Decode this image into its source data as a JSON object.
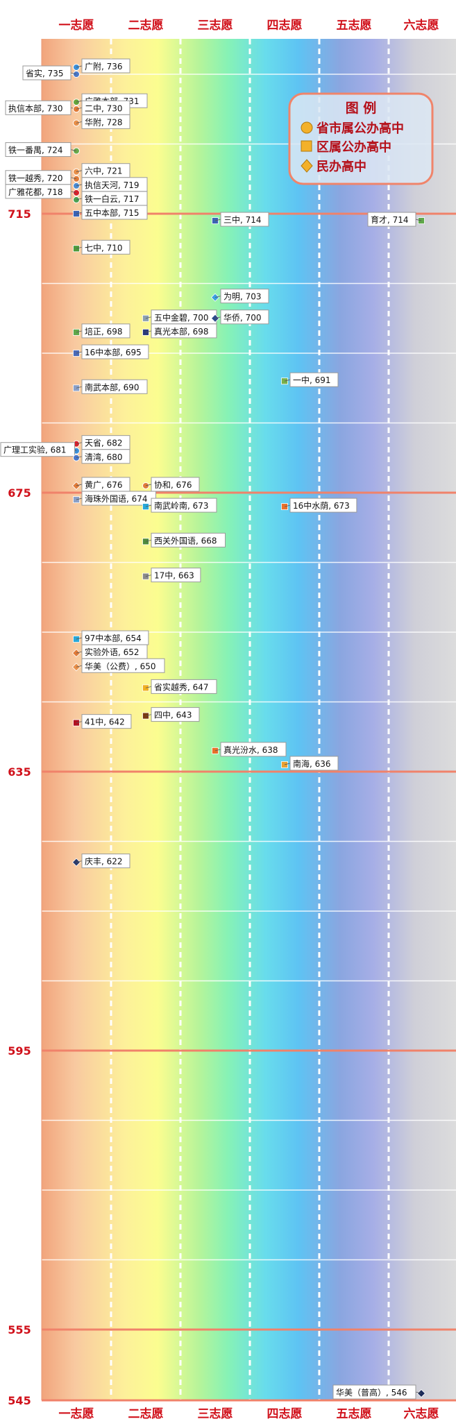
{
  "chart_data": {
    "type": "scatter",
    "title": "",
    "xlabel": "",
    "ylabel": "",
    "categories": [
      "一志愿",
      "二志愿",
      "三志愿",
      "四志愿",
      "五志愿",
      "六志愿"
    ],
    "y_ticks": [
      715,
      675,
      635,
      595,
      555,
      545
    ],
    "ylim": [
      545,
      741
    ],
    "grid": true,
    "legend": {
      "title": "图 例",
      "position": "top-right",
      "items": [
        {
          "label": "省市属公办高中",
          "shape": "circle",
          "color": "#f3b12a"
        },
        {
          "label": "区属公办高中",
          "shape": "square",
          "color": "#f3b12a"
        },
        {
          "label": "民办高中",
          "shape": "diamond",
          "color": "#f3b12a"
        }
      ]
    },
    "points": [
      {
        "name": "广附",
        "label": "广附, 736",
        "choice": 1,
        "score": 736,
        "shape": "circle",
        "color": "#3a8fd8",
        "side": "right"
      },
      {
        "name": "省实",
        "label": "省实, 735",
        "choice": 1,
        "score": 735,
        "shape": "circle",
        "color": "#4a77c9",
        "side": "left"
      },
      {
        "name": "广雅本部",
        "label": "广雅本部, 731",
        "choice": 1,
        "score": 731,
        "shape": "circle",
        "color": "#63a53c",
        "side": "right"
      },
      {
        "name": "执信本部",
        "label": "执信本部, 730",
        "choice": 1,
        "score": 730,
        "shape": "circle",
        "color": "#5aa040",
        "side": "left"
      },
      {
        "name": "二中",
        "label": "二中, 730",
        "choice": 1,
        "score": 730,
        "shape": "circle",
        "color": "#e07b39",
        "side": "right"
      },
      {
        "name": "华附",
        "label": "华附, 728",
        "choice": 1,
        "score": 728,
        "shape": "circle",
        "color": "#e8904a",
        "side": "right"
      },
      {
        "name": "铁一番禺",
        "label": "铁一番禺, 724",
        "choice": 1,
        "score": 724,
        "shape": "circle",
        "color": "#6aab4a",
        "side": "left"
      },
      {
        "name": "六中",
        "label": "六中, 721",
        "choice": 1,
        "score": 721,
        "shape": "circle",
        "color": "#e8904a",
        "side": "right"
      },
      {
        "name": "铁一越秀",
        "label": "铁一越秀, 720",
        "choice": 1,
        "score": 720,
        "shape": "circle",
        "color": "#e07b39",
        "side": "left"
      },
      {
        "name": "执信天河",
        "label": "执信天河, 719",
        "choice": 1,
        "score": 719,
        "shape": "circle",
        "color": "#4a8ad0",
        "side": "right"
      },
      {
        "name": "广雅花都",
        "label": "广雅花都, 718",
        "choice": 1,
        "score": 718,
        "shape": "circle",
        "color": "#d8202a",
        "side": "left"
      },
      {
        "name": "铁一白云",
        "label": "铁一白云, 717",
        "choice": 1,
        "score": 717,
        "shape": "circle",
        "color": "#4aa050",
        "side": "right"
      },
      {
        "name": "五中本部",
        "label": "五中本部, 715",
        "choice": 1,
        "score": 715,
        "shape": "square",
        "color": "#3b63b5",
        "side": "right"
      },
      {
        "name": "三中",
        "label": "三中, 714",
        "choice": 3,
        "score": 714,
        "shape": "square",
        "color": "#3b63b5",
        "side": "right"
      },
      {
        "name": "育才",
        "label": "育才, 714",
        "choice": 6,
        "score": 714,
        "shape": "square",
        "color": "#5fa84a",
        "side": "left"
      },
      {
        "name": "七中",
        "label": "七中, 710",
        "choice": 1,
        "score": 710,
        "shape": "square",
        "color": "#4e9a3c",
        "side": "right"
      },
      {
        "name": "为明",
        "label": "为明, 703",
        "choice": 3,
        "score": 703,
        "shape": "diamond",
        "color": "#3aa0e0",
        "side": "right"
      },
      {
        "name": "五中金碧",
        "label": "五中金碧, 700",
        "choice": 2,
        "score": 700,
        "shape": "square",
        "color": "#8aa0b0",
        "side": "right"
      },
      {
        "name": "华侨",
        "label": "华侨, 700",
        "choice": 3,
        "score": 700,
        "shape": "diamond",
        "color": "#2a4a8a",
        "side": "right"
      },
      {
        "name": "真光本部",
        "label": "真光本部, 698",
        "choice": 2,
        "score": 698,
        "shape": "square",
        "color": "#2a3a7a",
        "side": "right"
      },
      {
        "name": "培正",
        "label": "培正, 698",
        "choice": 1,
        "score": 698,
        "shape": "square",
        "color": "#5fa84a",
        "side": "right"
      },
      {
        "name": "16中本部",
        "label": "16中本部, 695",
        "choice": 1,
        "score": 695,
        "shape": "square",
        "color": "#4a6ab8",
        "side": "right"
      },
      {
        "name": "一中",
        "label": "一中, 691",
        "choice": 4,
        "score": 691,
        "shape": "square",
        "color": "#7ab04a",
        "side": "right"
      },
      {
        "name": "南武本部",
        "label": "南武本部, 690",
        "choice": 1,
        "score": 690,
        "shape": "square",
        "color": "#8aa0c8",
        "side": "right"
      },
      {
        "name": "天省",
        "label": "天省, 682",
        "choice": 1,
        "score": 682,
        "shape": "circle",
        "color": "#d8202a",
        "side": "right"
      },
      {
        "name": "广理工实验",
        "label": "广理工实验, 681",
        "choice": 1,
        "score": 681,
        "shape": "circle",
        "color": "#3a8fd8",
        "side": "left"
      },
      {
        "name": "清湾",
        "label": "清湾, 680",
        "choice": 1,
        "score": 680,
        "shape": "circle",
        "color": "#4a77c9",
        "side": "right"
      },
      {
        "name": "黄广",
        "label": "黄广, 676",
        "choice": 1,
        "score": 676,
        "shape": "diamond",
        "color": "#e07b39",
        "side": "right"
      },
      {
        "name": "协和",
        "label": "协和, 676",
        "choice": 2,
        "score": 676,
        "shape": "circle",
        "color": "#e07b39",
        "side": "right"
      },
      {
        "name": "海珠外国语",
        "label": "海珠外国语, 674",
        "choice": 1,
        "score": 674,
        "shape": "square",
        "color": "#8aa0c8",
        "side": "right"
      },
      {
        "name": "南武岭南",
        "label": "南武岭南, 673",
        "choice": 2,
        "score": 673,
        "shape": "square",
        "color": "#2aa8d8",
        "side": "right"
      },
      {
        "name": "16中水荫",
        "label": "16中水荫, 673",
        "choice": 4,
        "score": 673,
        "shape": "square",
        "color": "#e8702a",
        "side": "right"
      },
      {
        "name": "西关外国语",
        "label": "西关外国语, 668",
        "choice": 2,
        "score": 668,
        "shape": "square",
        "color": "#4e8a3c",
        "side": "right"
      },
      {
        "name": "17中",
        "label": "17中, 663",
        "choice": 2,
        "score": 663,
        "shape": "square",
        "color": "#8a8a8a",
        "side": "right"
      },
      {
        "name": "97中本部",
        "label": "97中本部, 654",
        "choice": 1,
        "score": 654,
        "shape": "square",
        "color": "#2aa8d8",
        "side": "right"
      },
      {
        "name": "实验外语",
        "label": "实验外语, 652",
        "choice": 1,
        "score": 652,
        "shape": "diamond",
        "color": "#e07b39",
        "side": "right"
      },
      {
        "name": "华美（公费）",
        "label": "华美（公费）, 650",
        "choice": 1,
        "score": 650,
        "shape": "diamond",
        "color": "#e8904a",
        "side": "right"
      },
      {
        "name": "省实越秀",
        "label": "省实越秀, 647",
        "choice": 2,
        "score": 647,
        "shape": "square",
        "color": "#f0b020",
        "side": "right"
      },
      {
        "name": "四中",
        "label": "四中, 643",
        "choice": 2,
        "score": 643,
        "shape": "square",
        "color": "#7a3a10",
        "side": "right"
      },
      {
        "name": "41中",
        "label": "41中, 642",
        "choice": 1,
        "score": 642,
        "shape": "square",
        "color": "#b01020",
        "side": "right"
      },
      {
        "name": "真光汾水",
        "label": "真光汾水, 638",
        "choice": 3,
        "score": 638,
        "shape": "square",
        "color": "#e8702a",
        "side": "right"
      },
      {
        "name": "南海",
        "label": "南海, 636",
        "choice": 4,
        "score": 636,
        "shape": "square",
        "color": "#e8a030",
        "side": "right"
      },
      {
        "name": "庆丰",
        "label": "庆丰, 622",
        "choice": 1,
        "score": 622,
        "shape": "diamond",
        "color": "#2a3a6a",
        "side": "right"
      },
      {
        "name": "华美（普高）",
        "label": "华美（普高）, 546",
        "choice": 6,
        "score": 546,
        "shape": "diamond",
        "color": "#1a2a5a",
        "side": "left"
      }
    ]
  }
}
